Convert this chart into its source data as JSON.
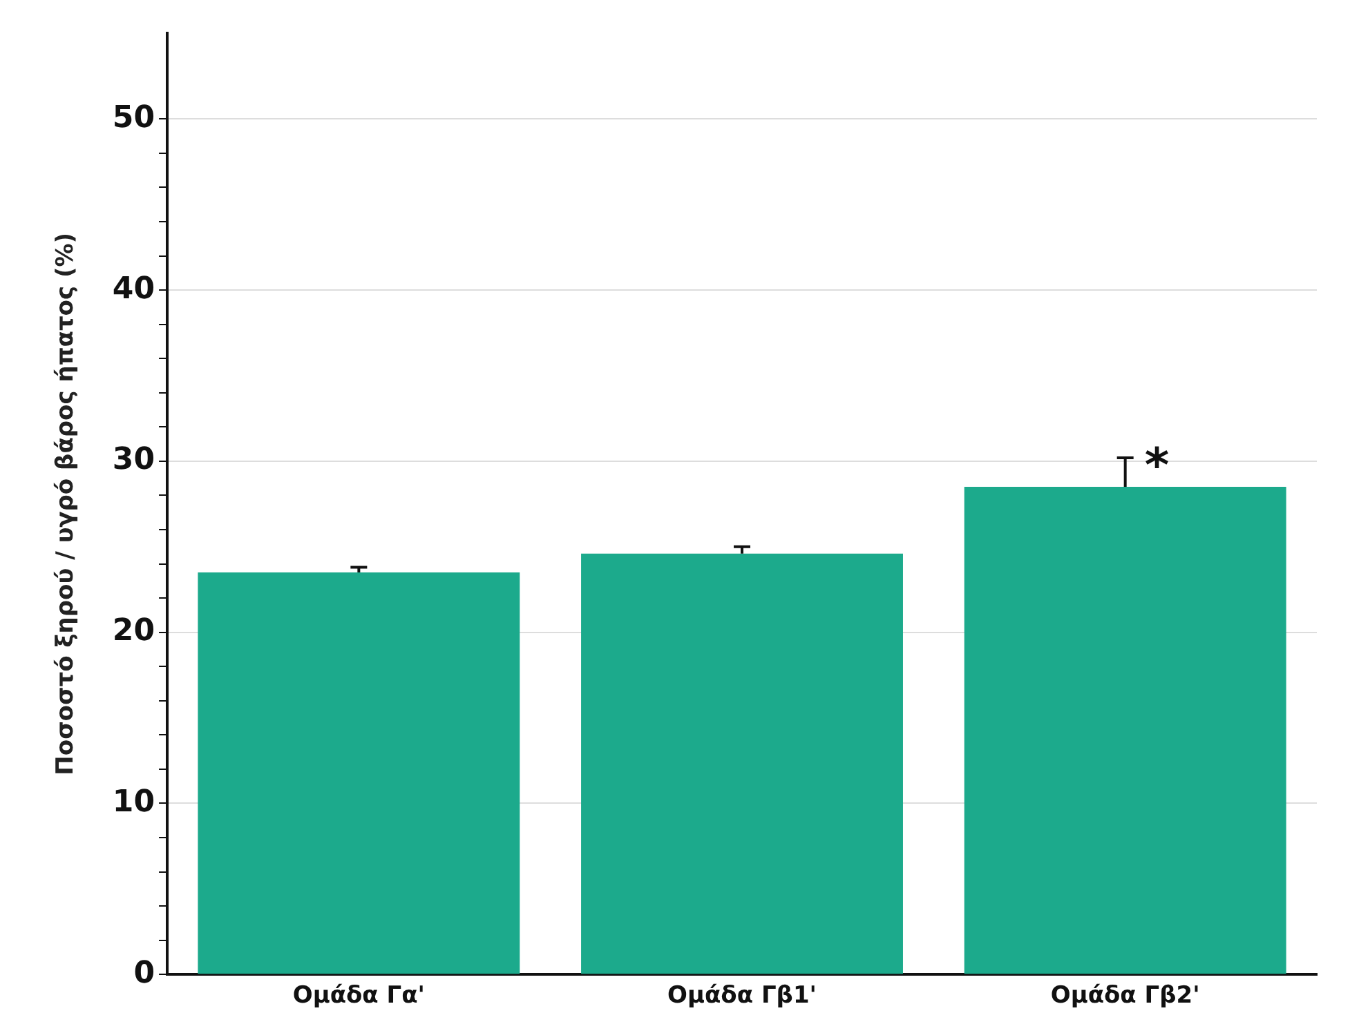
{
  "chart_data": {
    "type": "bar",
    "ylabel": "Ποσοστό ξηρού / υγρό βάρος ήπατος (%)",
    "categories": [
      "Ομάδα Γα'",
      "Ομάδα Γβ1'",
      "Ομάδα Γβ2'"
    ],
    "values": [
      23.5,
      24.6,
      28.5
    ],
    "color": "#1caa8c",
    "errors": [
      [
        23.5,
        23.8
      ],
      [
        24.6,
        25.0
      ],
      [
        28.5,
        30.2
      ]
    ],
    "ylim": [
      0,
      55
    ],
    "yticks": [
      0,
      {
        "value": 2,
        "label": null
      },
      {
        "value": 4,
        "label": null
      },
      {
        "value": 6,
        "label": null
      },
      {
        "value": 8,
        "label": null
      },
      10,
      {
        "value": 12,
        "label": null
      },
      {
        "value": 14,
        "label": null
      },
      {
        "value": 16,
        "label": null
      },
      {
        "value": 18,
        "label": null
      },
      20,
      {
        "value": 22,
        "label": null
      },
      {
        "value": 24,
        "label": null
      },
      {
        "value": 26,
        "label": null
      },
      {
        "value": 28,
        "label": null
      },
      30,
      {
        "value": 32,
        "label": null
      },
      {
        "value": 34,
        "label": null
      },
      {
        "value": 36,
        "label": null
      },
      {
        "value": 38,
        "label": null
      },
      40,
      {
        "value": 42,
        "label": null
      },
      {
        "value": 44,
        "label": null
      },
      {
        "value": 46,
        "label": null
      },
      {
        "value": 48,
        "label": null
      },
      50
    ],
    "grid": "y",
    "annotations": [
      {
        "text": "*",
        "x": "Ομάδα Γβ2'",
        "y": 30.2
      }
    ]
  }
}
